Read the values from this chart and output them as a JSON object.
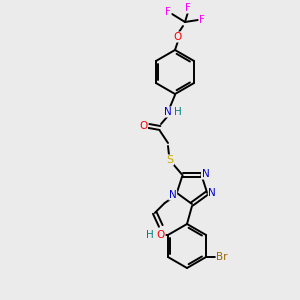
{
  "bg_color": "#ebebeb",
  "bond_color": "#000000",
  "atom_colors": {
    "N": "#0000cc",
    "O": "#ff0000",
    "S": "#ccaa00",
    "F": "#ff00ff",
    "Br": "#996600",
    "H_teal": "#008080",
    "C": "#000000"
  },
  "figsize": [
    3.0,
    3.0
  ],
  "dpi": 100
}
